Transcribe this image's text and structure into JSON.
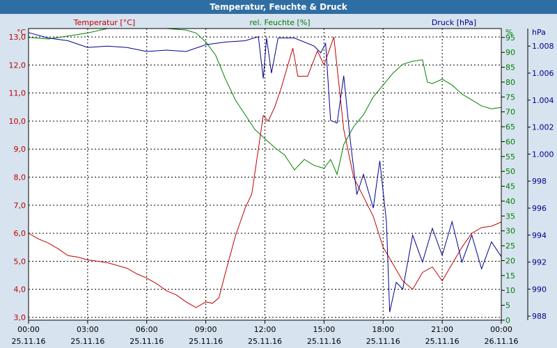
{
  "window": {
    "title": "Temperatur, Feuchte & Druck"
  },
  "colors": {
    "temperature": "#c00000",
    "humidity": "#008000",
    "pressure": "#00008b",
    "title_bg": "#2f6ea3",
    "plot_bg": "#ffffff",
    "frame_bg": "#d7e3ef"
  },
  "chart_data": {
    "type": "line",
    "title": "Temperatur, Feuchte & Druck",
    "x_ticks": [
      {
        "time": "00:00",
        "date": "25.11.16"
      },
      {
        "time": "03:00",
        "date": "25.11.16"
      },
      {
        "time": "06:00",
        "date": "25.11.16"
      },
      {
        "time": "09:00",
        "date": "25.11.16"
      },
      {
        "time": "12:00",
        "date": "25.11.16"
      },
      {
        "time": "15:00",
        "date": "25.11.16"
      },
      {
        "time": "18:00",
        "date": "25.11.16"
      },
      {
        "time": "21:00",
        "date": "25.11.16"
      },
      {
        "time": "00:00",
        "date": "26.11.16"
      }
    ],
    "xlim": [
      "2016-11-25 00:00",
      "2016-11-26 00:00"
    ],
    "grid": true,
    "axes": {
      "left": {
        "label": "Temperatur [°C]",
        "unit": "°C",
        "ylim": [
          2.9,
          13.3
        ],
        "ticks": [
          "3,0",
          "4,0",
          "5,0",
          "6,0",
          "7,0",
          "8,0",
          "9,0",
          "10,0",
          "11,0",
          "12,0",
          "13,0"
        ],
        "tick_values": [
          3,
          4,
          5,
          6,
          7,
          8,
          9,
          10,
          11,
          12,
          13
        ]
      },
      "middle": {
        "label": "rel. Feuchte [%]",
        "unit": "%",
        "ylim": [
          0,
          98
        ],
        "ticks": [
          "0",
          "5",
          "10",
          "15",
          "20",
          "25",
          "30",
          "35",
          "40",
          "45",
          "50",
          "55",
          "60",
          "65",
          "70",
          "75",
          "80",
          "85",
          "90",
          "95"
        ],
        "tick_values": [
          0,
          5,
          10,
          15,
          20,
          25,
          30,
          35,
          40,
          45,
          50,
          55,
          60,
          65,
          70,
          75,
          80,
          85,
          90,
          95
        ]
      },
      "right": {
        "label": "Druck [hPa]",
        "unit": "hPa",
        "ylim": [
          987.7,
          1009.3
        ],
        "ticks": [
          "988",
          "990",
          "992",
          "994",
          "996",
          "998",
          "1.000",
          "1.002",
          "1.004",
          "1.006",
          "1.008"
        ],
        "tick_values": [
          988,
          990,
          992,
          994,
          996,
          998,
          1000,
          1002,
          1004,
          1006,
          1008
        ]
      }
    },
    "series": [
      {
        "name": "Temperatur [°C]",
        "axis": "left",
        "color": "#c00000",
        "points": [
          [
            "2016-11-25 00:00",
            6.0
          ],
          [
            "2016-11-25 00:30",
            5.8
          ],
          [
            "2016-11-25 01:00",
            5.65
          ],
          [
            "2016-11-25 01:30",
            5.45
          ],
          [
            "2016-11-25 02:00",
            5.2
          ],
          [
            "2016-11-25 02:30",
            5.15
          ],
          [
            "2016-11-25 03:00",
            5.05
          ],
          [
            "2016-11-25 03:30",
            5.0
          ],
          [
            "2016-11-25 04:00",
            4.95
          ],
          [
            "2016-11-25 04:30",
            4.85
          ],
          [
            "2016-11-25 05:00",
            4.75
          ],
          [
            "2016-11-25 05:30",
            4.55
          ],
          [
            "2016-11-25 06:00",
            4.4
          ],
          [
            "2016-11-25 06:30",
            4.2
          ],
          [
            "2016-11-25 07:00",
            3.95
          ],
          [
            "2016-11-25 07:30",
            3.8
          ],
          [
            "2016-11-25 08:00",
            3.55
          ],
          [
            "2016-11-25 08:30",
            3.35
          ],
          [
            "2016-11-25 09:00",
            3.55
          ],
          [
            "2016-11-25 09:20",
            3.5
          ],
          [
            "2016-11-25 09:40",
            3.7
          ],
          [
            "2016-11-25 10:00",
            4.6
          ],
          [
            "2016-11-25 10:30",
            5.9
          ],
          [
            "2016-11-25 11:00",
            6.9
          ],
          [
            "2016-11-25 11:20",
            7.4
          ],
          [
            "2016-11-25 11:40",
            9.0
          ],
          [
            "2016-11-25 11:55",
            10.2
          ],
          [
            "2016-11-25 12:10",
            10.0
          ],
          [
            "2016-11-25 12:30",
            10.5
          ],
          [
            "2016-11-25 12:50",
            11.2
          ],
          [
            "2016-11-25 13:10",
            12.0
          ],
          [
            "2016-11-25 13:25",
            12.6
          ],
          [
            "2016-11-25 13:40",
            11.6
          ],
          [
            "2016-11-25 14:10",
            11.6
          ],
          [
            "2016-11-25 14:40",
            12.5
          ],
          [
            "2016-11-25 15:00",
            12.0
          ],
          [
            "2016-11-25 15:30",
            13.0
          ],
          [
            "2016-11-25 16:00",
            9.7
          ],
          [
            "2016-11-25 16:30",
            8.0
          ],
          [
            "2016-11-25 17:00",
            7.3
          ],
          [
            "2016-11-25 17:30",
            6.6
          ],
          [
            "2016-11-25 18:00",
            5.5
          ],
          [
            "2016-11-25 18:30",
            4.9
          ],
          [
            "2016-11-25 19:00",
            4.3
          ],
          [
            "2016-11-25 19:30",
            4.0
          ],
          [
            "2016-11-25 20:00",
            4.6
          ],
          [
            "2016-11-25 20:30",
            4.8
          ],
          [
            "2016-11-25 21:00",
            4.3
          ],
          [
            "2016-11-25 21:30",
            4.9
          ],
          [
            "2016-11-25 22:00",
            5.5
          ],
          [
            "2016-11-25 22:30",
            6.0
          ],
          [
            "2016-11-25 23:00",
            6.2
          ],
          [
            "2016-11-25 23:30",
            6.25
          ],
          [
            "2016-11-26 00:00",
            6.4
          ]
        ]
      },
      {
        "name": "rel. Feuchte [%]",
        "axis": "middle",
        "color": "#008000",
        "points": [
          [
            "2016-11-25 00:00",
            95.0
          ],
          [
            "2016-11-25 01:00",
            94.5
          ],
          [
            "2016-11-25 02:00",
            95.5
          ],
          [
            "2016-11-25 03:00",
            96.5
          ],
          [
            "2016-11-25 04:00",
            98.0
          ],
          [
            "2016-11-25 05:00",
            98.0
          ],
          [
            "2016-11-25 06:00",
            98.0
          ],
          [
            "2016-11-25 07:00",
            98.0
          ],
          [
            "2016-11-25 08:00",
            97.5
          ],
          [
            "2016-11-25 08:30",
            96.5
          ],
          [
            "2016-11-25 09:00",
            93.5
          ],
          [
            "2016-11-25 09:30",
            89.0
          ],
          [
            "2016-11-25 10:00",
            81.0
          ],
          [
            "2016-11-25 10:30",
            74.0
          ],
          [
            "2016-11-25 11:00",
            69.0
          ],
          [
            "2016-11-25 11:30",
            64.0
          ],
          [
            "2016-11-25 12:00",
            61.0
          ],
          [
            "2016-11-25 12:30",
            58.0
          ],
          [
            "2016-11-25 13:00",
            55.5
          ],
          [
            "2016-11-25 13:30",
            50.5
          ],
          [
            "2016-11-25 14:00",
            54.0
          ],
          [
            "2016-11-25 14:30",
            52.0
          ],
          [
            "2016-11-25 15:00",
            51.0
          ],
          [
            "2016-11-25 15:20",
            54.0
          ],
          [
            "2016-11-25 15:40",
            49.0
          ],
          [
            "2016-11-25 16:00",
            59.0
          ],
          [
            "2016-11-25 16:30",
            65.0
          ],
          [
            "2016-11-25 17:00",
            69.0
          ],
          [
            "2016-11-25 17:30",
            75.0
          ],
          [
            "2016-11-25 18:00",
            79.0
          ],
          [
            "2016-11-25 18:30",
            83.0
          ],
          [
            "2016-11-25 19:00",
            86.0
          ],
          [
            "2016-11-25 19:30",
            87.0
          ],
          [
            "2016-11-25 20:00",
            87.5
          ],
          [
            "2016-11-25 20:15",
            80.0
          ],
          [
            "2016-11-25 20:30",
            79.5
          ],
          [
            "2016-11-25 21:00",
            81.0
          ],
          [
            "2016-11-25 21:30",
            79.0
          ],
          [
            "2016-11-25 22:00",
            76.0
          ],
          [
            "2016-11-25 22:30",
            74.0
          ],
          [
            "2016-11-25 23:00",
            72.0
          ],
          [
            "2016-11-25 23:30",
            71.0
          ],
          [
            "2016-11-26 00:00",
            71.5
          ]
        ]
      },
      {
        "name": "Druck [hPa]",
        "axis": "right",
        "color": "#00008b",
        "points": [
          [
            "2016-11-25 00:00",
            1009.0
          ],
          [
            "2016-11-25 01:00",
            1008.6
          ],
          [
            "2016-11-25 02:00",
            1008.4
          ],
          [
            "2016-11-25 03:00",
            1007.9
          ],
          [
            "2016-11-25 04:00",
            1008.0
          ],
          [
            "2016-11-25 05:00",
            1007.9
          ],
          [
            "2016-11-25 06:00",
            1007.6
          ],
          [
            "2016-11-25 07:00",
            1007.7
          ],
          [
            "2016-11-25 08:00",
            1007.6
          ],
          [
            "2016-11-25 09:00",
            1008.1
          ],
          [
            "2016-11-25 10:00",
            1008.3
          ],
          [
            "2016-11-25 11:00",
            1008.4
          ],
          [
            "2016-11-25 11:40",
            1008.7
          ],
          [
            "2016-11-25 11:55",
            1005.6
          ],
          [
            "2016-11-25 12:05",
            1008.6
          ],
          [
            "2016-11-25 12:20",
            1006.0
          ],
          [
            "2016-11-25 12:40",
            1008.6
          ],
          [
            "2016-11-25 13:30",
            1008.6
          ],
          [
            "2016-11-25 14:30",
            1008.0
          ],
          [
            "2016-11-25 14:50",
            1007.5
          ],
          [
            "2016-11-25 15:05",
            1008.2
          ],
          [
            "2016-11-25 15:20",
            1002.5
          ],
          [
            "2016-11-25 15:40",
            1002.3
          ],
          [
            "2016-11-25 16:00",
            1005.8
          ],
          [
            "2016-11-25 16:20",
            1001.0
          ],
          [
            "2016-11-25 16:40",
            997.0
          ],
          [
            "2016-11-25 17:00",
            998.5
          ],
          [
            "2016-11-25 17:30",
            996.0
          ],
          [
            "2016-11-25 17:50",
            999.5
          ],
          [
            "2016-11-25 18:10",
            995.0
          ],
          [
            "2016-11-25 18:20",
            988.3
          ],
          [
            "2016-11-25 18:40",
            990.5
          ],
          [
            "2016-11-25 19:00",
            990.0
          ],
          [
            "2016-11-25 19:30",
            994.0
          ],
          [
            "2016-11-25 20:00",
            992.0
          ],
          [
            "2016-11-25 20:30",
            994.5
          ],
          [
            "2016-11-25 21:00",
            992.5
          ],
          [
            "2016-11-25 21:30",
            995.0
          ],
          [
            "2016-11-25 22:00",
            992.0
          ],
          [
            "2016-11-25 22:30",
            994.0
          ],
          [
            "2016-11-25 23:00",
            991.5
          ],
          [
            "2016-11-25 23:30",
            993.5
          ],
          [
            "2016-11-26 00:00",
            992.4
          ]
        ]
      }
    ]
  }
}
